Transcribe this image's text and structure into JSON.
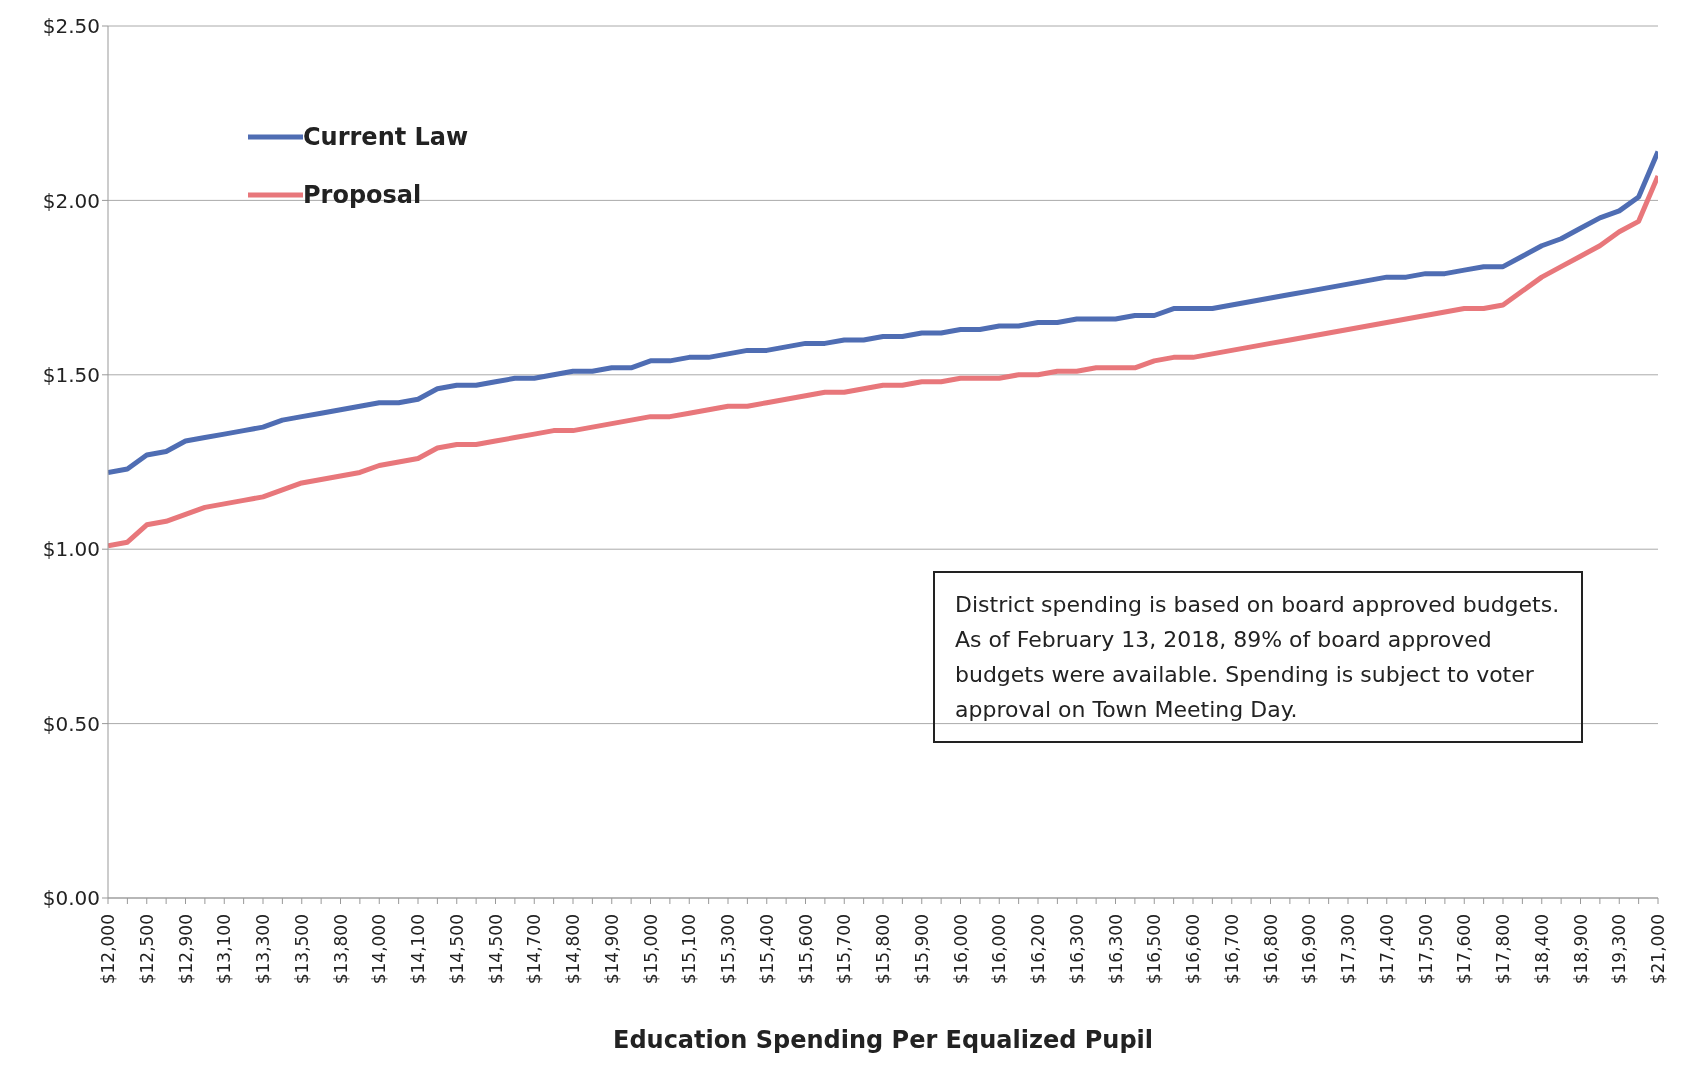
{
  "chart_data": {
    "type": "line",
    "xlabel": "Education Spending Per Equalized Pupil",
    "categories": [
      "$12,000",
      null,
      "$12,500",
      null,
      "$12,900",
      null,
      "$13,100",
      null,
      "$13,300",
      null,
      "$13,500",
      null,
      "$13,800",
      null,
      "$14,000",
      null,
      "$14,100",
      null,
      "$14,500",
      null,
      "$14,500",
      null,
      "$14,700",
      null,
      "$14,800",
      null,
      "$14,900",
      null,
      "$15,000",
      null,
      "$15,100",
      null,
      "$15,300",
      null,
      "$15,400",
      null,
      "$15,600",
      null,
      "$15,700",
      null,
      "$15,800",
      null,
      "$15,900",
      null,
      "$16,000",
      null,
      "$16,000",
      null,
      "$16,200",
      null,
      "$16,300",
      null,
      "$16,300",
      null,
      "$16,500",
      null,
      "$16,600",
      null,
      "$16,700",
      null,
      "$16,800",
      null,
      "$16,900",
      null,
      "$17,300",
      null,
      "$17,400",
      null,
      "$17,500",
      null,
      "$17,600",
      null,
      "$17,800",
      null,
      "$18,400",
      null,
      "$18,900",
      null,
      "$19,300",
      null,
      "$21,000"
    ],
    "series": [
      {
        "name": "Current Law",
        "color": "#4f6db3",
        "values": [
          1.22,
          1.23,
          1.27,
          1.28,
          1.31,
          1.32,
          1.33,
          1.34,
          1.35,
          1.37,
          1.38,
          1.39,
          1.4,
          1.41,
          1.42,
          1.42,
          1.43,
          1.46,
          1.47,
          1.47,
          1.48,
          1.49,
          1.49,
          1.5,
          1.51,
          1.51,
          1.52,
          1.52,
          1.54,
          1.54,
          1.55,
          1.55,
          1.56,
          1.57,
          1.57,
          1.58,
          1.59,
          1.59,
          1.6,
          1.6,
          1.61,
          1.61,
          1.62,
          1.62,
          1.63,
          1.63,
          1.64,
          1.64,
          1.65,
          1.65,
          1.66,
          1.66,
          1.66,
          1.67,
          1.67,
          1.69,
          1.69,
          1.69,
          1.7,
          1.71,
          1.72,
          1.73,
          1.74,
          1.75,
          1.76,
          1.77,
          1.78,
          1.78,
          1.79,
          1.79,
          1.8,
          1.81,
          1.81,
          1.84,
          1.87,
          1.89,
          1.92,
          1.95,
          1.97,
          2.01,
          2.14
        ]
      },
      {
        "name": "Proposal",
        "color": "#e8777b",
        "values": [
          1.01,
          1.02,
          1.07,
          1.08,
          1.1,
          1.12,
          1.13,
          1.14,
          1.15,
          1.17,
          1.19,
          1.2,
          1.21,
          1.22,
          1.24,
          1.25,
          1.26,
          1.29,
          1.3,
          1.3,
          1.31,
          1.32,
          1.33,
          1.34,
          1.34,
          1.35,
          1.36,
          1.37,
          1.38,
          1.38,
          1.39,
          1.4,
          1.41,
          1.41,
          1.42,
          1.43,
          1.44,
          1.45,
          1.45,
          1.46,
          1.47,
          1.47,
          1.48,
          1.48,
          1.49,
          1.49,
          1.49,
          1.5,
          1.5,
          1.51,
          1.51,
          1.52,
          1.52,
          1.52,
          1.54,
          1.55,
          1.55,
          1.56,
          1.57,
          1.58,
          1.59,
          1.6,
          1.61,
          1.62,
          1.63,
          1.64,
          1.65,
          1.66,
          1.67,
          1.68,
          1.69,
          1.69,
          1.7,
          1.74,
          1.78,
          1.81,
          1.84,
          1.87,
          1.91,
          1.94,
          2.07
        ]
      }
    ],
    "ylim": [
      0,
      2.5
    ],
    "yticks": [
      {
        "value": 0,
        "label": "$0.00"
      },
      {
        "value": 0.5,
        "label": "$0.50"
      },
      {
        "value": 1,
        "label": "$1.00"
      },
      {
        "value": 1.5,
        "label": "$1.50"
      },
      {
        "value": 2,
        "label": "$2.00"
      },
      {
        "value": 2.5,
        "label": "$2.50"
      }
    ],
    "grid": "y",
    "legend": "top left",
    "marker": "none",
    "line_style": "solid",
    "annotations": [
      "District spending is based on board approved budgets. As of February 13, 2018, 89% of board approved budgets were available. Spending is subject to voter approval on Town Meeting Day."
    ]
  }
}
